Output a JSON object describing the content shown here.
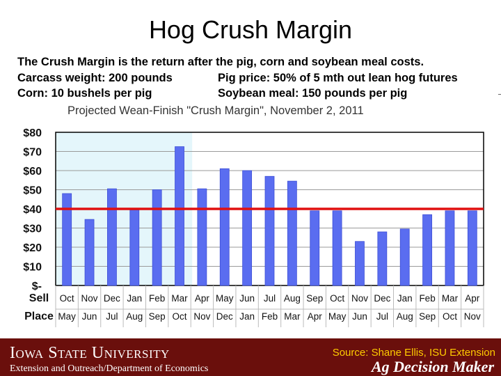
{
  "slide": {
    "title": "Hog Crush Margin",
    "description": "The Crush Margin is the return after the pig, corn and soybean meal costs.",
    "carcass": "Carcass weight:  200 pounds",
    "pig_price": "Pig price:  50% of 5 mth out lean hog futures",
    "corn": "Corn:  10 bushels per pig",
    "soybean": "Soybean meal:  150 pounds per pig"
  },
  "footer": {
    "isu_logo": "Iowa State University",
    "isu_sub": "Extension and Outreach/Department of Economics",
    "source": "Source: Shane Ellis, ISU Extension",
    "adm_logo": "Ag Decision Maker"
  },
  "colors": {
    "bar": "#5a6df0",
    "bar_edge": "#3d4fd6",
    "highlight_band": "#e4f6fb",
    "reference_line": "#e01010",
    "footer_bg": "#6a0f0c"
  },
  "chart_data": {
    "type": "bar",
    "title": "Projected Wean-Finish \"Crush Margin\", November 2, 2011",
    "row_labels": [
      "Sell",
      "Place"
    ],
    "categories": [
      {
        "sell": "Oct",
        "place": "May"
      },
      {
        "sell": "Nov",
        "place": "Jun"
      },
      {
        "sell": "Dec",
        "place": "Jul"
      },
      {
        "sell": "Jan",
        "place": "Aug"
      },
      {
        "sell": "Feb",
        "place": "Sep"
      },
      {
        "sell": "Mar",
        "place": "Oct"
      },
      {
        "sell": "Apr",
        "place": "Nov"
      },
      {
        "sell": "May",
        "place": "Dec"
      },
      {
        "sell": "Jun",
        "place": "Jan"
      },
      {
        "sell": "Jul",
        "place": "Feb"
      },
      {
        "sell": "Aug",
        "place": "Mar"
      },
      {
        "sell": "Sep",
        "place": "Apr"
      },
      {
        "sell": "Oct",
        "place": "May"
      },
      {
        "sell": "Nov",
        "place": "Jun"
      },
      {
        "sell": "Dec",
        "place": "Jul"
      },
      {
        "sell": "Jan",
        "place": "Aug"
      },
      {
        "sell": "Feb",
        "place": "Sep"
      },
      {
        "sell": "Mar",
        "place": "Oct"
      },
      {
        "sell": "Apr",
        "place": "Nov"
      }
    ],
    "values": [
      48,
      34.5,
      50.5,
      39.5,
      50,
      72.5,
      50.5,
      61,
      60,
      57,
      54.5,
      39,
      39,
      23,
      28,
      29.5,
      37,
      39,
      39
    ],
    "yticks": [
      {
        "value": 0,
        "label": "$-"
      },
      {
        "value": 10,
        "label": "$10"
      },
      {
        "value": 20,
        "label": "$20"
      },
      {
        "value": 30,
        "label": "$30"
      },
      {
        "value": 40,
        "label": "$40"
      },
      {
        "value": 50,
        "label": "$50"
      },
      {
        "value": 60,
        "label": "$60"
      },
      {
        "value": 70,
        "label": "$70"
      },
      {
        "value": 80,
        "label": "$80"
      }
    ],
    "ylim": [
      0,
      80
    ],
    "reference_line": 40,
    "highlighted_categories": [
      0,
      5
    ],
    "grid": true
  }
}
